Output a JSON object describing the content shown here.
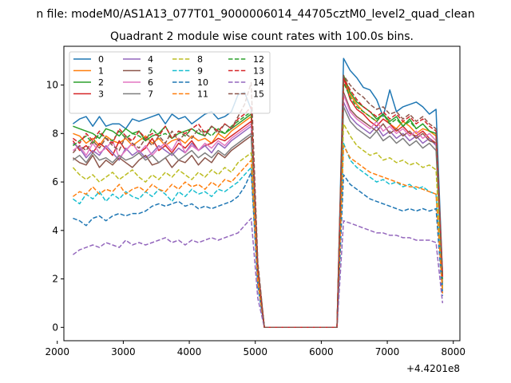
{
  "chart_data": {
    "type": "line",
    "suptitle": "n file: modeM0/AS1A13_077T01_9000006014_44705cztM0_level2_quad_clean",
    "title": "Quadrant 2 module wise count rates with 100.0s bins.",
    "xlabel": "",
    "ylabel": "",
    "x_offset_label": "+4.4201e8",
    "xlim": [
      2100,
      8100
    ],
    "ylim": [
      -0.55,
      11.6
    ],
    "x_ticks": [
      2000,
      3000,
      4000,
      5000,
      6000,
      7000,
      8000
    ],
    "y_ticks": [
      0,
      2,
      4,
      6,
      8,
      10
    ],
    "grid": false,
    "legend": {
      "placement": "top-left",
      "columns": 4
    },
    "x": [
      2238,
      2338,
      2438,
      2538,
      2638,
      2738,
      2838,
      2938,
      3038,
      3138,
      3238,
      3338,
      3438,
      3538,
      3638,
      3738,
      3838,
      3938,
      4038,
      4138,
      4238,
      4338,
      4438,
      4538,
      4638,
      4738,
      4838,
      4938,
      5038,
      5138,
      5238,
      5338,
      5438,
      5538,
      5638,
      5738,
      5838,
      5938,
      6038,
      6138,
      6238,
      6338,
      6438,
      6538,
      6638,
      6738,
      6838,
      6938,
      7038,
      7138,
      7238,
      7338,
      7438,
      7538,
      7638,
      7738,
      7838
    ],
    "series": [
      {
        "name": "0",
        "color": "#1f77b4",
        "dash": "solid",
        "values": [
          8.4,
          8.6,
          8.7,
          8.3,
          8.7,
          8.3,
          8.4,
          8.4,
          8.2,
          8.6,
          8.5,
          8.6,
          8.7,
          8.8,
          8.4,
          8.8,
          8.6,
          8.7,
          8.4,
          8.6,
          8.8,
          8.9,
          8.6,
          8.7,
          8.9,
          9.6,
          9.7,
          9.0,
          2.5,
          0,
          0,
          0,
          0,
          0,
          0,
          0,
          0,
          0,
          0,
          0,
          0,
          11.1,
          10.6,
          10.3,
          9.9,
          9.8,
          9.4,
          8.7,
          9.8,
          8.9,
          9.1,
          9.2,
          9.3,
          9.1,
          8.8,
          9.0,
          2.1
        ]
      },
      {
        "name": "1",
        "color": "#ff7f0e",
        "dash": "solid",
        "values": [
          8.0,
          7.9,
          7.6,
          7.8,
          7.5,
          7.9,
          7.7,
          7.6,
          7.8,
          7.5,
          7.7,
          7.9,
          7.6,
          7.8,
          7.5,
          7.7,
          7.8,
          7.6,
          7.9,
          7.7,
          7.8,
          7.6,
          8.0,
          7.8,
          8.1,
          8.3,
          8.5,
          8.7,
          2.3,
          0,
          0,
          0,
          0,
          0,
          0,
          0,
          0,
          0,
          0,
          0,
          0,
          10.3,
          9.6,
          9.2,
          8.9,
          8.7,
          8.5,
          8.8,
          8.4,
          8.2,
          8.5,
          8.3,
          8.0,
          8.2,
          8.1,
          7.9,
          1.9
        ]
      },
      {
        "name": "2",
        "color": "#2ca02c",
        "dash": "solid",
        "values": [
          8.3,
          8.2,
          8.1,
          8.0,
          7.8,
          8.2,
          8.1,
          7.9,
          8.2,
          8.0,
          8.1,
          7.7,
          7.9,
          8.0,
          8.3,
          7.8,
          8.0,
          8.1,
          8.2,
          8.0,
          7.9,
          8.3,
          8.1,
          8.0,
          8.2,
          8.4,
          8.6,
          8.8,
          2.4,
          0,
          0,
          0,
          0,
          0,
          0,
          0,
          0,
          0,
          0,
          0,
          0,
          10.4,
          9.7,
          9.3,
          9.1,
          8.9,
          8.6,
          8.8,
          8.5,
          8.7,
          8.3,
          8.6,
          8.2,
          8.4,
          8.1,
          8.0,
          2.0
        ]
      },
      {
        "name": "3",
        "color": "#d62728",
        "dash": "solid",
        "values": [
          7.7,
          7.3,
          7.5,
          7.2,
          7.6,
          7.4,
          7.1,
          7.7,
          7.3,
          7.6,
          7.2,
          7.4,
          7.8,
          7.3,
          7.5,
          7.2,
          7.6,
          7.4,
          7.7,
          7.3,
          7.5,
          7.6,
          7.8,
          7.7,
          7.9,
          8.1,
          8.3,
          8.5,
          2.3,
          0,
          0,
          0,
          0,
          0,
          0,
          0,
          0,
          0,
          0,
          0,
          0,
          10.3,
          9.4,
          9.0,
          8.8,
          8.5,
          8.3,
          8.6,
          8.4,
          8.1,
          8.3,
          8.0,
          7.9,
          8.1,
          7.8,
          7.6,
          1.9
        ]
      },
      {
        "name": "4",
        "color": "#9467bd",
        "dash": "solid",
        "values": [
          7.6,
          7.4,
          7.0,
          7.3,
          7.1,
          7.5,
          7.2,
          6.9,
          7.4,
          7.1,
          7.3,
          7.0,
          7.2,
          7.5,
          7.3,
          7.1,
          7.4,
          7.2,
          7.6,
          7.3,
          7.5,
          7.2,
          7.6,
          7.4,
          7.7,
          7.9,
          8.1,
          8.3,
          2.2,
          0,
          0,
          0,
          0,
          0,
          0,
          0,
          0,
          0,
          0,
          0,
          0,
          9.3,
          8.7,
          8.4,
          8.2,
          8.0,
          8.3,
          7.9,
          8.1,
          7.8,
          8.0,
          7.7,
          7.9,
          7.6,
          7.8,
          7.5,
          1.8
        ]
      },
      {
        "name": "5",
        "color": "#8c564b",
        "dash": "solid",
        "values": [
          7.0,
          6.8,
          6.7,
          7.1,
          6.6,
          6.9,
          6.7,
          7.0,
          6.8,
          6.6,
          6.9,
          7.1,
          6.7,
          6.8,
          7.0,
          6.6,
          6.9,
          6.8,
          7.1,
          6.7,
          7.0,
          6.8,
          7.2,
          7.0,
          7.3,
          7.5,
          7.7,
          7.9,
          2.1,
          0,
          0,
          0,
          0,
          0,
          0,
          0,
          0,
          0,
          0,
          0,
          0,
          9.7,
          9.0,
          8.7,
          8.5,
          8.3,
          8.1,
          8.4,
          8.0,
          8.2,
          7.9,
          8.1,
          7.8,
          8.0,
          7.7,
          7.6,
          1.8
        ]
      },
      {
        "name": "6",
        "color": "#e377c2",
        "dash": "solid",
        "values": [
          7.3,
          7.5,
          7.1,
          7.6,
          7.2,
          7.4,
          7.7,
          7.0,
          7.3,
          7.6,
          7.2,
          7.5,
          7.1,
          7.4,
          7.6,
          7.3,
          7.8,
          7.2,
          7.5,
          7.3,
          7.6,
          7.4,
          7.7,
          7.5,
          7.8,
          8.0,
          8.2,
          8.4,
          2.2,
          0,
          0,
          0,
          0,
          0,
          0,
          0,
          0,
          0,
          0,
          0,
          0,
          9.6,
          8.9,
          8.6,
          8.4,
          8.2,
          8.5,
          8.1,
          8.3,
          8.0,
          8.2,
          7.9,
          8.1,
          7.8,
          8.0,
          7.7,
          1.9
        ]
      },
      {
        "name": "7",
        "color": "#7f7f7f",
        "dash": "solid",
        "values": [
          6.9,
          7.1,
          6.8,
          7.2,
          6.9,
          7.0,
          6.8,
          7.1,
          6.9,
          7.0,
          7.2,
          6.9,
          7.1,
          6.8,
          7.0,
          7.2,
          6.9,
          7.1,
          7.3,
          7.0,
          7.2,
          7.0,
          7.3,
          7.1,
          7.4,
          7.6,
          7.8,
          8.0,
          2.1,
          0,
          0,
          0,
          0,
          0,
          0,
          0,
          0,
          0,
          0,
          0,
          0,
          9.1,
          8.5,
          8.2,
          8.0,
          7.8,
          8.1,
          7.7,
          7.9,
          7.6,
          7.8,
          7.5,
          7.7,
          7.4,
          7.6,
          7.3,
          1.7
        ]
      },
      {
        "name": "8",
        "color": "#bcbd22",
        "dash": "dashed",
        "values": [
          6.6,
          6.3,
          6.1,
          6.3,
          6.0,
          6.2,
          6.4,
          6.1,
          6.3,
          6.5,
          6.2,
          6.0,
          6.3,
          6.1,
          6.4,
          6.2,
          6.5,
          6.3,
          6.1,
          6.4,
          6.2,
          6.5,
          6.3,
          6.6,
          6.4,
          6.8,
          7.0,
          7.2,
          2.0,
          0,
          0,
          0,
          0,
          0,
          0,
          0,
          0,
          0,
          0,
          0,
          0,
          8.4,
          7.9,
          7.5,
          7.3,
          7.1,
          7.2,
          6.9,
          7.0,
          6.8,
          6.9,
          6.7,
          6.8,
          6.6,
          6.7,
          6.5,
          1.6
        ]
      },
      {
        "name": "9",
        "color": "#17becf",
        "dash": "dashed",
        "values": [
          5.3,
          5.1,
          5.5,
          5.3,
          5.6,
          5.2,
          5.5,
          5.3,
          5.6,
          5.4,
          5.3,
          5.6,
          5.4,
          5.7,
          5.5,
          5.2,
          5.6,
          5.4,
          5.7,
          5.5,
          5.6,
          5.4,
          5.7,
          5.6,
          5.8,
          6.0,
          6.3,
          6.6,
          1.8,
          0,
          0,
          0,
          0,
          0,
          0,
          0,
          0,
          0,
          0,
          0,
          0,
          7.6,
          6.9,
          6.6,
          6.4,
          6.2,
          6.0,
          6.1,
          5.9,
          6.0,
          5.8,
          5.9,
          5.7,
          5.8,
          5.6,
          5.5,
          1.5
        ]
      },
      {
        "name": "10",
        "color": "#1f77b4",
        "dash": "dashed",
        "values": [
          4.5,
          4.4,
          4.2,
          4.5,
          4.6,
          4.4,
          4.6,
          4.7,
          4.6,
          4.7,
          4.7,
          4.8,
          5.0,
          5.1,
          5.0,
          5.1,
          5.2,
          5.0,
          5.1,
          4.9,
          5.0,
          4.9,
          5.0,
          5.1,
          5.2,
          5.4,
          5.8,
          6.4,
          1.7,
          0,
          0,
          0,
          0,
          0,
          0,
          0,
          0,
          0,
          0,
          0,
          0,
          6.3,
          5.9,
          5.7,
          5.5,
          5.3,
          5.2,
          5.1,
          5.0,
          4.9,
          4.8,
          4.9,
          4.8,
          4.9,
          4.8,
          4.9,
          1.3
        ]
      },
      {
        "name": "11",
        "color": "#ff7f0e",
        "dash": "dashed",
        "values": [
          5.4,
          5.6,
          5.5,
          5.8,
          5.5,
          5.7,
          5.6,
          5.9,
          5.5,
          5.7,
          5.8,
          5.6,
          5.9,
          5.7,
          5.6,
          5.9,
          5.7,
          6.0,
          5.8,
          5.9,
          5.7,
          6.0,
          5.8,
          6.1,
          6.0,
          6.3,
          6.6,
          6.9,
          1.9,
          0,
          0,
          0,
          0,
          0,
          0,
          0,
          0,
          0,
          0,
          0,
          0,
          7.5,
          7.0,
          6.8,
          6.6,
          6.4,
          6.3,
          6.2,
          6.1,
          6.0,
          5.9,
          5.8,
          5.8,
          5.7,
          5.6,
          5.5,
          1.4
        ]
      },
      {
        "name": "12",
        "color": "#2ca02c",
        "dash": "dashed",
        "values": [
          7.5,
          7.7,
          7.9,
          7.6,
          8.0,
          7.8,
          7.7,
          8.1,
          7.8,
          8.0,
          7.9,
          7.7,
          8.2,
          7.9,
          8.0,
          7.8,
          8.1,
          7.9,
          8.2,
          8.0,
          8.1,
          7.9,
          8.2,
          8.0,
          8.3,
          8.5,
          8.7,
          8.9,
          2.4,
          0,
          0,
          0,
          0,
          0,
          0,
          0,
          0,
          0,
          0,
          0,
          0,
          10.1,
          9.5,
          9.1,
          8.9,
          8.7,
          8.5,
          8.8,
          8.4,
          8.6,
          8.3,
          8.5,
          8.2,
          8.4,
          8.1,
          8.0,
          2.0
        ]
      },
      {
        "name": "13",
        "color": "#d62728",
        "dash": "dashed",
        "values": [
          7.8,
          7.6,
          8.0,
          7.7,
          8.1,
          7.8,
          7.6,
          8.2,
          7.9,
          7.7,
          8.1,
          7.8,
          8.0,
          7.9,
          8.3,
          7.8,
          8.1,
          8.0,
          8.2,
          8.4,
          8.0,
          8.3,
          8.1,
          8.4,
          8.2,
          8.6,
          8.8,
          9.1,
          2.4,
          0,
          0,
          0,
          0,
          0,
          0,
          0,
          0,
          0,
          0,
          0,
          0,
          10.3,
          9.8,
          9.4,
          9.1,
          8.9,
          8.7,
          8.9,
          8.6,
          8.8,
          8.5,
          8.7,
          8.4,
          8.6,
          8.3,
          8.1,
          2.1
        ]
      },
      {
        "name": "14",
        "color": "#9467bd",
        "dash": "dashed",
        "values": [
          3.0,
          3.2,
          3.3,
          3.4,
          3.3,
          3.5,
          3.4,
          3.3,
          3.6,
          3.4,
          3.5,
          3.4,
          3.5,
          3.6,
          3.7,
          3.5,
          3.6,
          3.4,
          3.6,
          3.5,
          3.6,
          3.7,
          3.6,
          3.7,
          3.8,
          3.9,
          4.2,
          4.5,
          1.2,
          0,
          0,
          0,
          0,
          0,
          0,
          0,
          0,
          0,
          0,
          0,
          0,
          4.4,
          4.3,
          4.2,
          4.1,
          4.0,
          3.9,
          3.9,
          3.8,
          3.8,
          3.7,
          3.7,
          3.6,
          3.6,
          3.6,
          3.5,
          1.0
        ]
      },
      {
        "name": "15",
        "color": "#8c564b",
        "dash": "dashed",
        "values": [
          7.2,
          7.5,
          7.3,
          7.7,
          7.4,
          7.8,
          7.5,
          7.3,
          7.9,
          7.6,
          7.4,
          7.8,
          7.5,
          7.9,
          7.6,
          8.1,
          7.7,
          8.0,
          7.8,
          8.2,
          7.9,
          8.3,
          8.0,
          8.4,
          8.2,
          8.7,
          9.2,
          10.1,
          2.7,
          0,
          0,
          0,
          0,
          0,
          0,
          0,
          0,
          0,
          0,
          0,
          0,
          10.4,
          10.0,
          9.7,
          9.5,
          9.2,
          9.0,
          9.1,
          8.8,
          8.9,
          8.6,
          8.8,
          8.5,
          8.7,
          8.4,
          8.2,
          2.2
        ]
      }
    ]
  }
}
